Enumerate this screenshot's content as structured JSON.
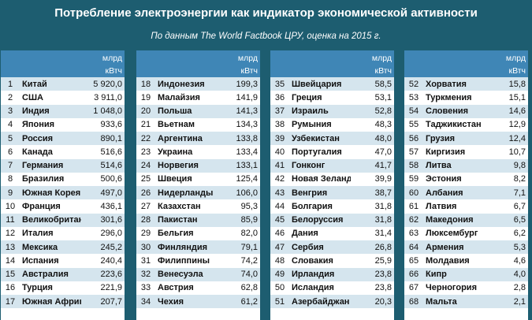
{
  "header": {
    "title": "Потребление электроэнергии как индикатор экономической активности",
    "subtitle": "По данным The World Factbook ЦРУ, оценка на 2015 г."
  },
  "units": {
    "line1": "млрд",
    "line2": "кВтч"
  },
  "columns": [
    {
      "rows": [
        {
          "rank": "1",
          "country": "Китай",
          "value": "5 920,0"
        },
        {
          "rank": "2",
          "country": "США",
          "value": "3 911,0"
        },
        {
          "rank": "3",
          "country": "Индия",
          "value": "1 048,0"
        },
        {
          "rank": "4",
          "country": "Япония",
          "value": "933,6"
        },
        {
          "rank": "5",
          "country": "Россия",
          "value": "890,1"
        },
        {
          "rank": "6",
          "country": "Канада",
          "value": "516,6"
        },
        {
          "rank": "7",
          "country": "Германия",
          "value": "514,6"
        },
        {
          "rank": "8",
          "country": "Бразилия",
          "value": "500,6"
        },
        {
          "rank": "9",
          "country": "Южная Корея",
          "value": "497,0"
        },
        {
          "rank": "10",
          "country": "Франция",
          "value": "436,1"
        },
        {
          "rank": "11",
          "country": "Великобритания",
          "value": "301,6"
        },
        {
          "rank": "12",
          "country": "Италия",
          "value": "296,0"
        },
        {
          "rank": "13",
          "country": "Мексика",
          "value": "245,2"
        },
        {
          "rank": "14",
          "country": "Испания",
          "value": "240,4"
        },
        {
          "rank": "15",
          "country": "Австралия",
          "value": "223,6"
        },
        {
          "rank": "16",
          "country": "Турция",
          "value": "221,9"
        },
        {
          "rank": "17",
          "country": "Южная Африка",
          "value": "207,7"
        }
      ]
    },
    {
      "rows": [
        {
          "rank": "18",
          "country": "Индонезия",
          "value": "199,3"
        },
        {
          "rank": "19",
          "country": "Малайзия",
          "value": "141,9"
        },
        {
          "rank": "20",
          "country": "Польша",
          "value": "141,3"
        },
        {
          "rank": "21",
          "country": "Вьетнам",
          "value": "134,3"
        },
        {
          "rank": "22",
          "country": "Аргентина",
          "value": "133,8"
        },
        {
          "rank": "23",
          "country": "Украина",
          "value": "133,4"
        },
        {
          "rank": "24",
          "country": "Норвегия",
          "value": "133,1"
        },
        {
          "rank": "25",
          "country": "Швеция",
          "value": "125,4"
        },
        {
          "rank": "26",
          "country": "Нидерланды",
          "value": "106,0"
        },
        {
          "rank": "27",
          "country": "Казахстан",
          "value": "95,3"
        },
        {
          "rank": "28",
          "country": "Пакистан",
          "value": "85,9"
        },
        {
          "rank": "29",
          "country": "Бельгия",
          "value": "82,0"
        },
        {
          "rank": "30",
          "country": "Финляндия",
          "value": "79,1"
        },
        {
          "rank": "31",
          "country": "Филиппины",
          "value": "74,2"
        },
        {
          "rank": "32",
          "country": "Венесуэла",
          "value": "74,0"
        },
        {
          "rank": "33",
          "country": "Австрия",
          "value": "62,8"
        },
        {
          "rank": "34",
          "country": "Чехия",
          "value": "61,2"
        }
      ]
    },
    {
      "rows": [
        {
          "rank": "35",
          "country": "Швейцария",
          "value": "58,5"
        },
        {
          "rank": "36",
          "country": "Греция",
          "value": "53,1"
        },
        {
          "rank": "37",
          "country": "Израиль",
          "value": "52,8"
        },
        {
          "rank": "38",
          "country": "Румыния",
          "value": "48,3"
        },
        {
          "rank": "39",
          "country": "Узбекистан",
          "value": "48,0"
        },
        {
          "rank": "40",
          "country": "Португалия",
          "value": "47,0"
        },
        {
          "rank": "41",
          "country": "Гонконг",
          "value": "41,7"
        },
        {
          "rank": "42",
          "country": "Новая Зеландия",
          "value": "39,9"
        },
        {
          "rank": "43",
          "country": "Венгрия",
          "value": "38,7"
        },
        {
          "rank": "44",
          "country": "Болгария",
          "value": "31,8"
        },
        {
          "rank": "45",
          "country": "Белоруссия",
          "value": "31,8"
        },
        {
          "rank": "46",
          "country": "Дания",
          "value": "31,4"
        },
        {
          "rank": "47",
          "country": "Сербия",
          "value": "26,8"
        },
        {
          "rank": "48",
          "country": "Словакия",
          "value": "25,9"
        },
        {
          "rank": "49",
          "country": "Ирландия",
          "value": "23,8"
        },
        {
          "rank": "50",
          "country": "Исландия",
          "value": "23,8"
        },
        {
          "rank": "51",
          "country": "Азербайджан",
          "value": "20,3"
        }
      ]
    },
    {
      "rows": [
        {
          "rank": "52",
          "country": "Хорватия",
          "value": "15,8"
        },
        {
          "rank": "53",
          "country": "Туркмения",
          "value": "15,1"
        },
        {
          "rank": "54",
          "country": "Словения",
          "value": "14,6"
        },
        {
          "rank": "55",
          "country": "Таджикистан",
          "value": "12,9"
        },
        {
          "rank": "56",
          "country": "Грузия",
          "value": "12,4"
        },
        {
          "rank": "57",
          "country": "Киргизия",
          "value": "10,7"
        },
        {
          "rank": "58",
          "country": "Литва",
          "value": "9,8"
        },
        {
          "rank": "59",
          "country": "Эстония",
          "value": "8,2"
        },
        {
          "rank": "60",
          "country": "Албания",
          "value": "7,1"
        },
        {
          "rank": "61",
          "country": "Латвия",
          "value": "6,7"
        },
        {
          "rank": "62",
          "country": "Македония",
          "value": "6,5"
        },
        {
          "rank": "63",
          "country": "Люксембург",
          "value": "6,2"
        },
        {
          "rank": "64",
          "country": "Армения",
          "value": "5,3"
        },
        {
          "rank": "65",
          "country": "Молдавия",
          "value": "4,6"
        },
        {
          "rank": "66",
          "country": "Кипр",
          "value": "4,0"
        },
        {
          "rank": "67",
          "country": "Черногория",
          "value": "2,8"
        },
        {
          "rank": "68",
          "country": "Мальта",
          "value": "2,1"
        }
      ]
    }
  ]
}
